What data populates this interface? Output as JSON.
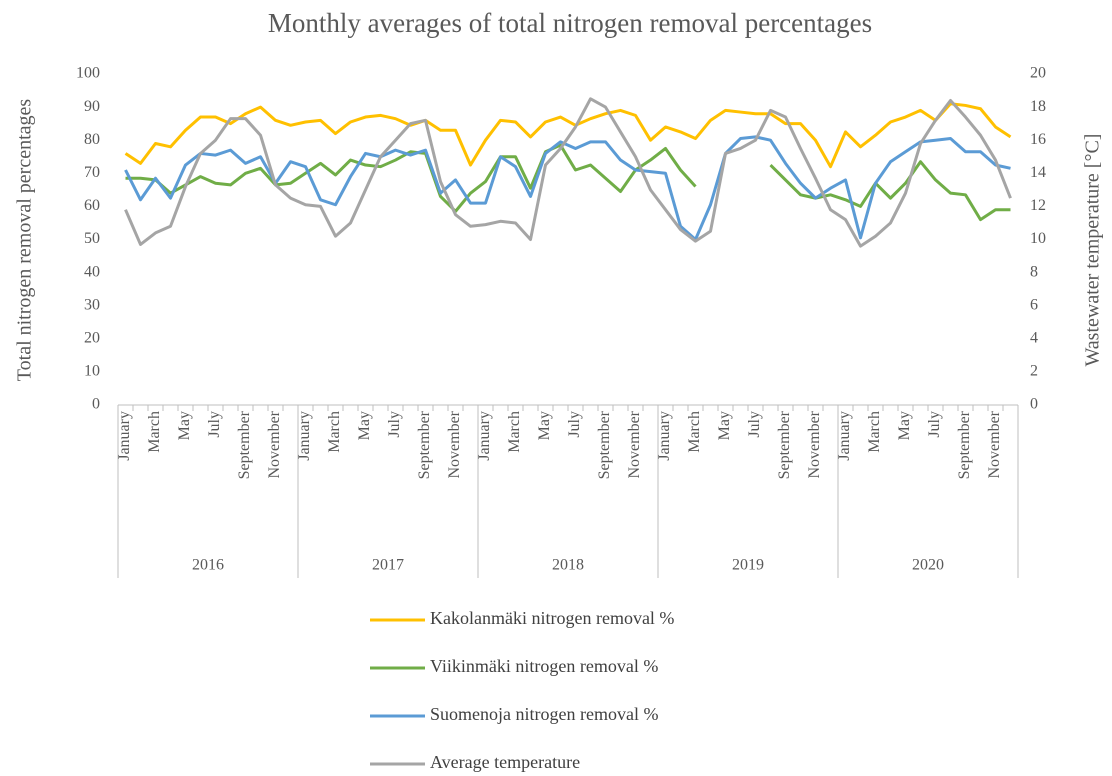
{
  "chart_data": {
    "type": "line",
    "title": "Monthly averages of total nitrogen removal percentages",
    "y_label": "Total nitrogen removal percentages",
    "y2_label": "Wastewater temperature [°C]",
    "categories": [
      "January",
      null,
      "March",
      null,
      "May",
      null,
      "July",
      null,
      "September",
      null,
      "November",
      null,
      "January",
      null,
      "March",
      null,
      "May",
      null,
      "July",
      null,
      "September",
      null,
      "November",
      null,
      "January",
      null,
      "March",
      null,
      "May",
      null,
      "July",
      null,
      "September",
      null,
      "November",
      null,
      "January",
      null,
      "March",
      null,
      "May",
      null,
      "July",
      null,
      "September",
      null,
      "November",
      null,
      "January",
      null,
      "March",
      null,
      "May",
      null,
      "July",
      null,
      "September",
      null,
      "November",
      null
    ],
    "year_labels": [
      "2016",
      "2017",
      "2018",
      "2019",
      "2020"
    ],
    "ylim": [
      0,
      100
    ],
    "yticks": [
      0,
      10,
      20,
      30,
      40,
      50,
      60,
      70,
      80,
      90,
      100
    ],
    "y2lim": [
      0,
      20
    ],
    "y2ticks": [
      0,
      2,
      4,
      6,
      8,
      10,
      12,
      14,
      16,
      18,
      20
    ],
    "series": [
      {
        "name": "Kakolanmäki nitrogen removal %",
        "color": "#ffc000",
        "values": [
          76,
          73,
          79,
          78,
          83,
          87,
          87,
          85,
          88,
          90,
          86,
          84.5,
          85.5,
          86,
          82,
          85.5,
          87,
          87.5,
          86.5,
          84.5,
          86,
          83,
          83,
          72.5,
          80,
          86,
          85.5,
          81,
          85.5,
          87,
          84.5,
          86.5,
          88,
          89,
          87.5,
          80,
          84,
          82.5,
          80.5,
          86,
          89,
          88.5,
          88,
          88,
          85,
          85,
          80,
          72,
          82.5,
          78,
          81.5,
          85.5,
          87,
          89,
          86,
          91,
          90.5,
          89.5,
          84,
          81
        ]
      },
      {
        "name": "Viikinmäki nitrogen removal %",
        "color": "#70ad47",
        "values": [
          68.5,
          68.5,
          68,
          64,
          66.5,
          69,
          67,
          66.5,
          70,
          71.5,
          66.5,
          67,
          70,
          73,
          69.5,
          74,
          72.5,
          72,
          74,
          76.5,
          76,
          63,
          58.5,
          64,
          67.5,
          75,
          75,
          65.5,
          76.5,
          78.5,
          71,
          72.5,
          68.5,
          64.5,
          71,
          74,
          77.5,
          71,
          66,
          null,
          null,
          null,
          null,
          72.5,
          68,
          63.5,
          62.5,
          63.5,
          62,
          60,
          67,
          62.5,
          67,
          73.5,
          68,
          64,
          63.5,
          56,
          59,
          59
        ]
      },
      {
        "name": "Suomenoja nitrogen removal %",
        "color": "#5b9bd5",
        "values": [
          71,
          62,
          68.5,
          62.5,
          72.5,
          76,
          75.5,
          77,
          73,
          75,
          67,
          73.5,
          72,
          62,
          60.5,
          69,
          76,
          75,
          77,
          75.5,
          77,
          64,
          68,
          61,
          61,
          75,
          72,
          63,
          76,
          79.5,
          77.5,
          79.5,
          79.5,
          74,
          71,
          70.5,
          70,
          54,
          50,
          60.5,
          76,
          80.5,
          81,
          80,
          73,
          67,
          62.5,
          65.5,
          68,
          50.5,
          67,
          73.5,
          76.5,
          79.5,
          80,
          80.5,
          76.5,
          76.5,
          72.5,
          71.5
        ]
      },
      {
        "name": "Average temperature",
        "color": "#a5a5a5",
        "axis": "y2",
        "values": [
          11.8,
          9.7,
          10.4,
          10.8,
          13.2,
          15.2,
          16,
          17.3,
          17.3,
          16.3,
          13.3,
          12.5,
          12.1,
          12,
          10.2,
          11,
          13,
          15,
          16,
          17,
          17.2,
          13.5,
          11.5,
          10.8,
          10.9,
          11.1,
          11,
          10,
          14.5,
          15.5,
          16.8,
          18.5,
          18,
          16.5,
          15,
          13,
          11.8,
          10.6,
          9.9,
          10.5,
          15.2,
          15.5,
          16,
          17.8,
          17.4,
          15.5,
          13.7,
          11.8,
          11.2,
          9.6,
          10.2,
          11,
          12.8,
          15.8,
          17.2,
          18.4,
          17.4,
          16.3,
          14.8,
          12.5
        ]
      }
    ]
  }
}
